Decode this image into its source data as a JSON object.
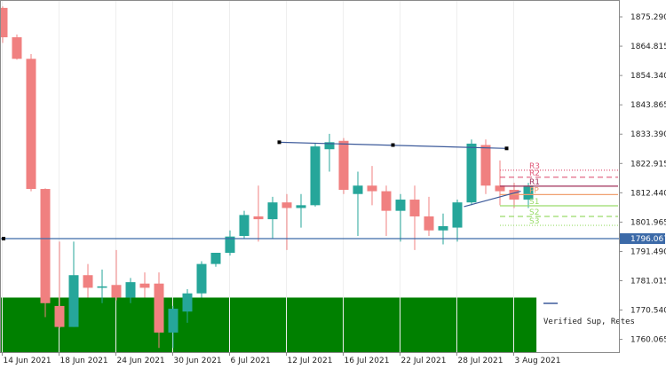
{
  "chart_data": {
    "type": "candlestick",
    "symbol_timeframe": "",
    "y_ticks": [
      "1875.290",
      "1864.815",
      "1854.340",
      "1843.865",
      "1833.390",
      "1822.915",
      "1812.440",
      "1801.965",
      "1791.490",
      "1781.015",
      "1770.540",
      "1760.065"
    ],
    "x_ticks": [
      {
        "label": "14 Jun 2021",
        "i": 0
      },
      {
        "label": "18 Jun 2021",
        "i": 4
      },
      {
        "label": "24 Jun 2021",
        "i": 8
      },
      {
        "label": "30 Jun 2021",
        "i": 12
      },
      {
        "label": "6 Jul 2021",
        "i": 16
      },
      {
        "label": "12 Jul 2021",
        "i": 20
      },
      {
        "label": "16 Jul 2021",
        "i": 24
      },
      {
        "label": "22 Jul 2021",
        "i": 28
      },
      {
        "label": "28 Jul 2021",
        "i": 32
      },
      {
        "label": "3 Aug 2021",
        "i": 36
      }
    ],
    "ylim": [
      1755.5,
      1881.0
    ],
    "bull_color": "#26a69a",
    "bear_color": "#f08080",
    "candles": [
      {
        "o": 1878.5,
        "h": 1879.0,
        "l": 1866.0,
        "c": 1868.0
      },
      {
        "o": 1868.0,
        "h": 1869.0,
        "l": 1860.0,
        "c": 1860.3
      },
      {
        "o": 1860.3,
        "h": 1862.0,
        "l": 1813.0,
        "c": 1813.8
      },
      {
        "o": 1813.8,
        "h": 1814.0,
        "l": 1768.0,
        "c": 1773.0
      },
      {
        "o": 1772.0,
        "h": 1795.0,
        "l": 1764.0,
        "c": 1764.5
      },
      {
        "o": 1764.5,
        "h": 1795.0,
        "l": 1764.5,
        "c": 1783.0
      },
      {
        "o": 1783.0,
        "h": 1787.0,
        "l": 1775.0,
        "c": 1778.5
      },
      {
        "o": 1778.5,
        "h": 1785.0,
        "l": 1773.0,
        "c": 1779.0
      },
      {
        "o": 1779.5,
        "h": 1792.0,
        "l": 1774.0,
        "c": 1775.0
      },
      {
        "o": 1775.0,
        "h": 1782.0,
        "l": 1773.0,
        "c": 1780.5
      },
      {
        "o": 1780.0,
        "h": 1784.0,
        "l": 1775.0,
        "c": 1778.5
      },
      {
        "o": 1780.0,
        "h": 1784.0,
        "l": 1757.0,
        "c": 1762.5
      },
      {
        "o": 1762.5,
        "h": 1772.0,
        "l": 1757.0,
        "c": 1771.0
      },
      {
        "o": 1770.0,
        "h": 1778.0,
        "l": 1766.0,
        "c": 1776.5
      },
      {
        "o": 1776.5,
        "h": 1788.0,
        "l": 1775.0,
        "c": 1787.0
      },
      {
        "o": 1787.0,
        "h": 1791.0,
        "l": 1786.0,
        "c": 1791.0
      },
      {
        "o": 1791.0,
        "h": 1799.0,
        "l": 1790.0,
        "c": 1796.8
      },
      {
        "o": 1797.0,
        "h": 1806.0,
        "l": 1796.0,
        "c": 1804.5
      },
      {
        "o": 1804.0,
        "h": 1815.0,
        "l": 1795.0,
        "c": 1803.0
      },
      {
        "o": 1803.0,
        "h": 1811.0,
        "l": 1796.0,
        "c": 1809.0
      },
      {
        "o": 1809.0,
        "h": 1812.0,
        "l": 1792.0,
        "c": 1807.0
      },
      {
        "o": 1807.0,
        "h": 1812.0,
        "l": 1800.0,
        "c": 1808.0
      },
      {
        "o": 1808.0,
        "h": 1830.0,
        "l": 1807.5,
        "c": 1829.0
      },
      {
        "o": 1828.0,
        "h": 1833.5,
        "l": 1820.0,
        "c": 1830.5
      },
      {
        "o": 1831.0,
        "h": 1832.0,
        "l": 1812.0,
        "c": 1813.5
      },
      {
        "o": 1812.0,
        "h": 1820.0,
        "l": 1797.0,
        "c": 1815.0
      },
      {
        "o": 1815.0,
        "h": 1822.0,
        "l": 1808.0,
        "c": 1813.0
      },
      {
        "o": 1813.0,
        "h": 1815.0,
        "l": 1797.0,
        "c": 1806.0
      },
      {
        "o": 1806.0,
        "h": 1812.0,
        "l": 1795.0,
        "c": 1810.0
      },
      {
        "o": 1810.0,
        "h": 1815.0,
        "l": 1792.0,
        "c": 1804.0
      },
      {
        "o": 1804.0,
        "h": 1811.0,
        "l": 1797.0,
        "c": 1799.0
      },
      {
        "o": 1799.0,
        "h": 1805.0,
        "l": 1794.0,
        "c": 1800.5
      },
      {
        "o": 1800.0,
        "h": 1810.0,
        "l": 1795.0,
        "c": 1809.0
      },
      {
        "o": 1809.0,
        "h": 1831.5,
        "l": 1808.0,
        "c": 1830.0
      },
      {
        "o": 1829.5,
        "h": 1831.5,
        "l": 1812.0,
        "c": 1815.0
      },
      {
        "o": 1815.0,
        "h": 1824.0,
        "l": 1808.0,
        "c": 1813.0
      },
      {
        "o": 1813.5,
        "h": 1816.0,
        "l": 1807.0,
        "c": 1810.0
      },
      {
        "o": 1810.0,
        "h": 1816.0,
        "l": 1807.0,
        "c": 1815.0
      }
    ],
    "trend_lines": [
      {
        "i1": 19.5,
        "y1": 1830.5,
        "im": 27.5,
        "ym": 1829.5,
        "i2": 35.5,
        "y2": 1828.3,
        "color": "#3c5a9a"
      },
      {
        "i1": 32.5,
        "y1": 1807.5,
        "i2": 36.5,
        "y2": 1813.0,
        "color": "#3c5a9a"
      }
    ],
    "levels": [
      {
        "label": "R3",
        "value": 1820.5,
        "color": "#e05a7a",
        "dash": "1,2"
      },
      {
        "label": "R2",
        "value": 1818.0,
        "color": "#e05a7a",
        "dash": "6,4"
      },
      {
        "label": "R1",
        "value": 1814.8,
        "color": "#a0305a",
        "dash": "none"
      },
      {
        "label": "PP",
        "value": 1811.8,
        "color": "#f0a070",
        "dash": "none"
      },
      {
        "label": "S1",
        "value": 1807.8,
        "color": "#9adc6a",
        "dash": "none"
      },
      {
        "label": "S2",
        "value": 1804.0,
        "color": "#9adc6a",
        "dash": "6,4"
      },
      {
        "label": "S3",
        "value": 1800.8,
        "color": "#9adc6a",
        "dash": "1,2"
      }
    ],
    "horizontal_line": {
      "value": 1796.067,
      "label": "1796.067",
      "color": "#3c6aa8"
    },
    "zone": {
      "top": 1775.0,
      "bottom": 1755.5,
      "end_i": 37.6,
      "color": "#008000"
    },
    "legend_text": "Verified Sup, Retes",
    "legend_color": "#3c5a9a"
  }
}
